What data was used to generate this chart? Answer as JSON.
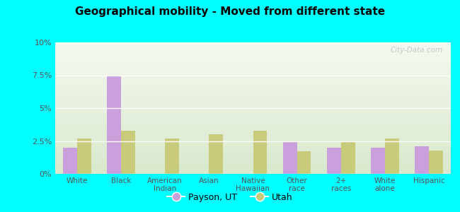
{
  "title": "Geographical mobility - Moved from different state",
  "categories": [
    "White",
    "Black",
    "American\nIndian",
    "Asian",
    "Native\nHawaiian",
    "Other\nrace",
    "2+\nraces",
    "White\nalone",
    "Hispanic"
  ],
  "payson_values": [
    2.0,
    7.5,
    0.0,
    0.0,
    0.0,
    2.5,
    2.0,
    2.0,
    2.1
  ],
  "utah_values": [
    2.7,
    3.3,
    2.7,
    3.0,
    3.3,
    1.7,
    2.5,
    2.7,
    1.8
  ],
  "payson_color": "#c9a0dc",
  "utah_color": "#c8cc7a",
  "background_color": "#00ffff",
  "grad_top": "#f5f9f0",
  "grad_bottom": "#d8e8cc",
  "ylim": [
    0,
    10
  ],
  "yticks": [
    0,
    2.5,
    5.0,
    7.5,
    10.0
  ],
  "ytick_labels": [
    "0%",
    "2.5%",
    "5%",
    "7.5%",
    "10%"
  ],
  "bar_width": 0.32,
  "legend_payson": "Payson, UT",
  "legend_utah": "Utah",
  "watermark": "City-Data.com"
}
